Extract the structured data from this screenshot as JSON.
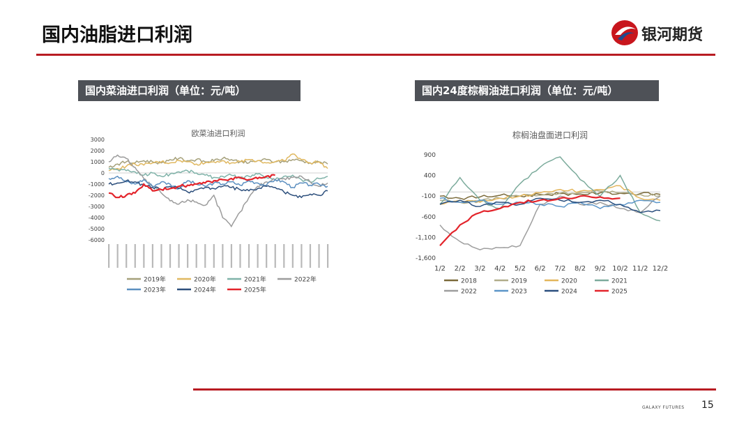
{
  "header": {
    "title": "国内油脂进口利润",
    "logo_text": "银河期货"
  },
  "colors": {
    "accent": "#b81c22",
    "label_box": "#4e5157"
  },
  "sections": {
    "left_label": "国内菜油进口利润（单位：元/吨）",
    "right_label": "国内24度棕榈油进口利润（单位：元/吨）"
  },
  "footer": {
    "brand": "GALAXY FUTURES",
    "page": "15"
  },
  "chart_data": [
    {
      "type": "line",
      "title": "欧菜油进口利润",
      "ylim": [
        -6000,
        3000
      ],
      "yticks": [
        "3000",
        "2000",
        "1000",
        "0",
        "-1000",
        "-2000",
        "-3000",
        "-4000",
        "-5000",
        "-6000"
      ],
      "x_tick_count": 26,
      "legend_position": "bottom",
      "series": [
        {
          "name": "2019年",
          "color": "#a5a07a",
          "values": [
            500,
            800,
            1000,
            900,
            1100,
            1000,
            900,
            1200,
            1300,
            1100,
            1200,
            1000,
            1100,
            1300,
            1200,
            1000,
            900,
            1100,
            1200,
            1000,
            1000,
            1200,
            1100,
            900,
            1000,
            800
          ]
        },
        {
          "name": "2020年",
          "color": "#e0b860",
          "values": [
            200,
            400,
            600,
            800,
            700,
            900,
            1000,
            900,
            1100,
            1000,
            800,
            900,
            1000,
            1100,
            900,
            1000,
            1200,
            1100,
            900,
            1000,
            1100,
            1700,
            1200,
            900,
            1000,
            400
          ]
        },
        {
          "name": "2021年",
          "color": "#7fb2a8",
          "values": [
            400,
            300,
            200,
            100,
            -200,
            0,
            -300,
            -100,
            100,
            200,
            0,
            -200,
            -400,
            -300,
            -200,
            -500,
            -300,
            -100,
            -400,
            -600,
            -300,
            -200,
            -600,
            -800,
            -500,
            -300
          ]
        },
        {
          "name": "2022年",
          "color": "#9c9c9c",
          "values": [
            1000,
            1600,
            1300,
            500,
            -500,
            -1200,
            -1800,
            -2500,
            -2800,
            -2400,
            -2600,
            -2900,
            -2000,
            -4000,
            -4800,
            -3500,
            -2200,
            -1200,
            -800,
            -600,
            -500,
            -400,
            -300,
            -800,
            -1200,
            -900
          ]
        },
        {
          "name": "2023年",
          "color": "#5b8fc0",
          "values": [
            -500,
            -300,
            -800,
            -1000,
            -600,
            -1200,
            -800,
            -1000,
            -1400,
            -700,
            -1000,
            -1200,
            -900,
            -1000,
            -800,
            -1100,
            -700,
            -900,
            -1100,
            -600,
            -800,
            -1300,
            -900,
            -1100,
            -1000,
            -1200
          ]
        },
        {
          "name": "2024年",
          "color": "#2d4f7c",
          "values": [
            -1000,
            -900,
            -700,
            -800,
            -1100,
            -1300,
            -1500,
            -1200,
            -1400,
            -1700,
            -1500,
            -1300,
            -1400,
            -1200,
            -1300,
            -1500,
            -1600,
            -1400,
            -1200,
            -1300,
            -1700,
            -2000,
            -2200,
            -1900,
            -2000,
            -1600
          ]
        },
        {
          "name": "2025年",
          "color": "#e3242b",
          "values": [
            -1800,
            -2200,
            -2000,
            -1800,
            -1000,
            -1600,
            -1500,
            -1400,
            -1200,
            -1100,
            -1000,
            -900,
            -700,
            -600,
            -500,
            -400,
            -600,
            -500,
            -300,
            -200,
            null,
            null,
            null,
            null,
            null,
            null
          ]
        }
      ]
    },
    {
      "type": "line",
      "title": "棕榈油盘面进口利润",
      "ylim": [
        -1600,
        900
      ],
      "yticks": [
        "900",
        "400",
        "-100",
        "-600",
        "-1,100",
        "-1,600"
      ],
      "categories": [
        "1/2",
        "2/2",
        "3/2",
        "4/2",
        "5/2",
        "6/2",
        "7/2",
        "8/2",
        "9/2",
        "10/2",
        "11/2",
        "12/2"
      ],
      "legend_position": "bottom",
      "series": [
        {
          "name": "2018",
          "color": "#7b6a3a",
          "values": [
            -100,
            -150,
            -120,
            -80,
            -100,
            -60,
            -40,
            -50,
            -20,
            -30,
            -40,
            -60
          ]
        },
        {
          "name": "2019",
          "color": "#b0ad8a",
          "values": [
            -200,
            -250,
            -220,
            -150,
            -100,
            -80,
            -30,
            -10,
            20,
            -20,
            -60,
            -90
          ]
        },
        {
          "name": "2020",
          "color": "#e3b65c",
          "values": [
            -300,
            -200,
            -250,
            -150,
            -100,
            -20,
            60,
            20,
            60,
            150,
            -150,
            -200
          ]
        },
        {
          "name": "2021",
          "color": "#7cab9c",
          "values": [
            -300,
            350,
            -200,
            -400,
            200,
            600,
            850,
            300,
            -100,
            400,
            -500,
            -700
          ]
        },
        {
          "name": "2022",
          "color": "#9e9e9e",
          "values": [
            -800,
            -1200,
            -1400,
            -1350,
            -1300,
            -300,
            -100,
            -300,
            -250,
            -400,
            -500,
            -100
          ]
        },
        {
          "name": "2023",
          "color": "#5b95c8",
          "values": [
            -150,
            -250,
            -200,
            -300,
            -250,
            -300,
            -350,
            -250,
            -400,
            -300,
            -200,
            -250
          ]
        },
        {
          "name": "2024",
          "color": "#2a4f7e",
          "values": [
            -300,
            -200,
            -350,
            -250,
            -300,
            -150,
            -200,
            -250,
            -200,
            -300,
            -500,
            -450
          ]
        },
        {
          "name": "2025",
          "color": "#e3242b",
          "values": [
            -1300,
            -800,
            -500,
            -400,
            -250,
            -200,
            -150,
            -100,
            -120,
            -150,
            null,
            null
          ]
        }
      ]
    }
  ]
}
